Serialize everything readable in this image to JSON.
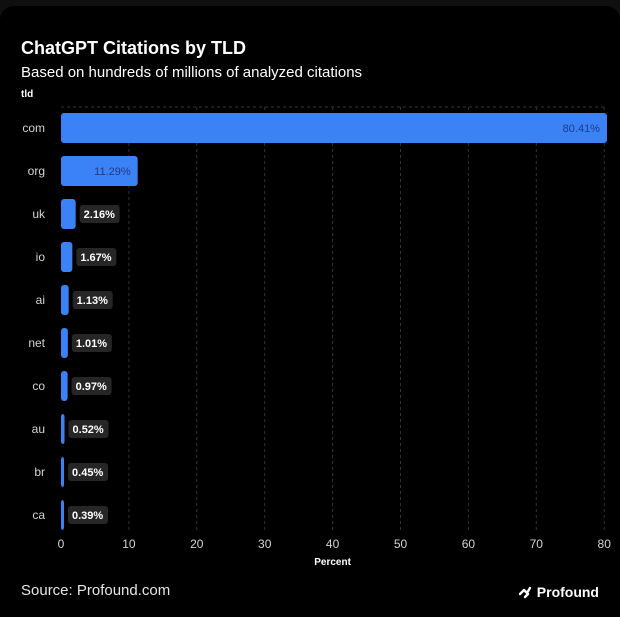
{
  "header": {
    "title": "ChatGPT Citations by TLD",
    "subtitle": "Based on hundreds of millions of analyzed citations"
  },
  "footer": {
    "source": "Source: Profound.com",
    "brand": "Profound",
    "brand_icon": "profound-logo-icon"
  },
  "colors": {
    "bar": "#3b82f6",
    "background": "#000000",
    "grid": "#333333",
    "text": "#ffffff",
    "tick_text": "#d4d4d4",
    "label_bg": "#262626"
  },
  "chart_data": {
    "type": "bar",
    "orientation": "horizontal",
    "categories": [
      "com",
      "org",
      "uk",
      "io",
      "ai",
      "net",
      "co",
      "au",
      "br",
      "ca"
    ],
    "values": [
      80.41,
      11.29,
      2.16,
      1.67,
      1.13,
      1.01,
      0.97,
      0.52,
      0.45,
      0.39
    ],
    "value_labels": [
      "80.41%",
      "11.29%",
      "2.16%",
      "1.67%",
      "1.13%",
      "1.01%",
      "0.97%",
      "0.52%",
      "0.45%",
      "0.39%"
    ],
    "ylabel": "tld",
    "xlabel": "Percent",
    "xlim": [
      0,
      80
    ],
    "xticks": [
      0,
      10,
      20,
      30,
      40,
      50,
      60,
      70,
      80
    ],
    "grid": true,
    "legend": "none"
  }
}
